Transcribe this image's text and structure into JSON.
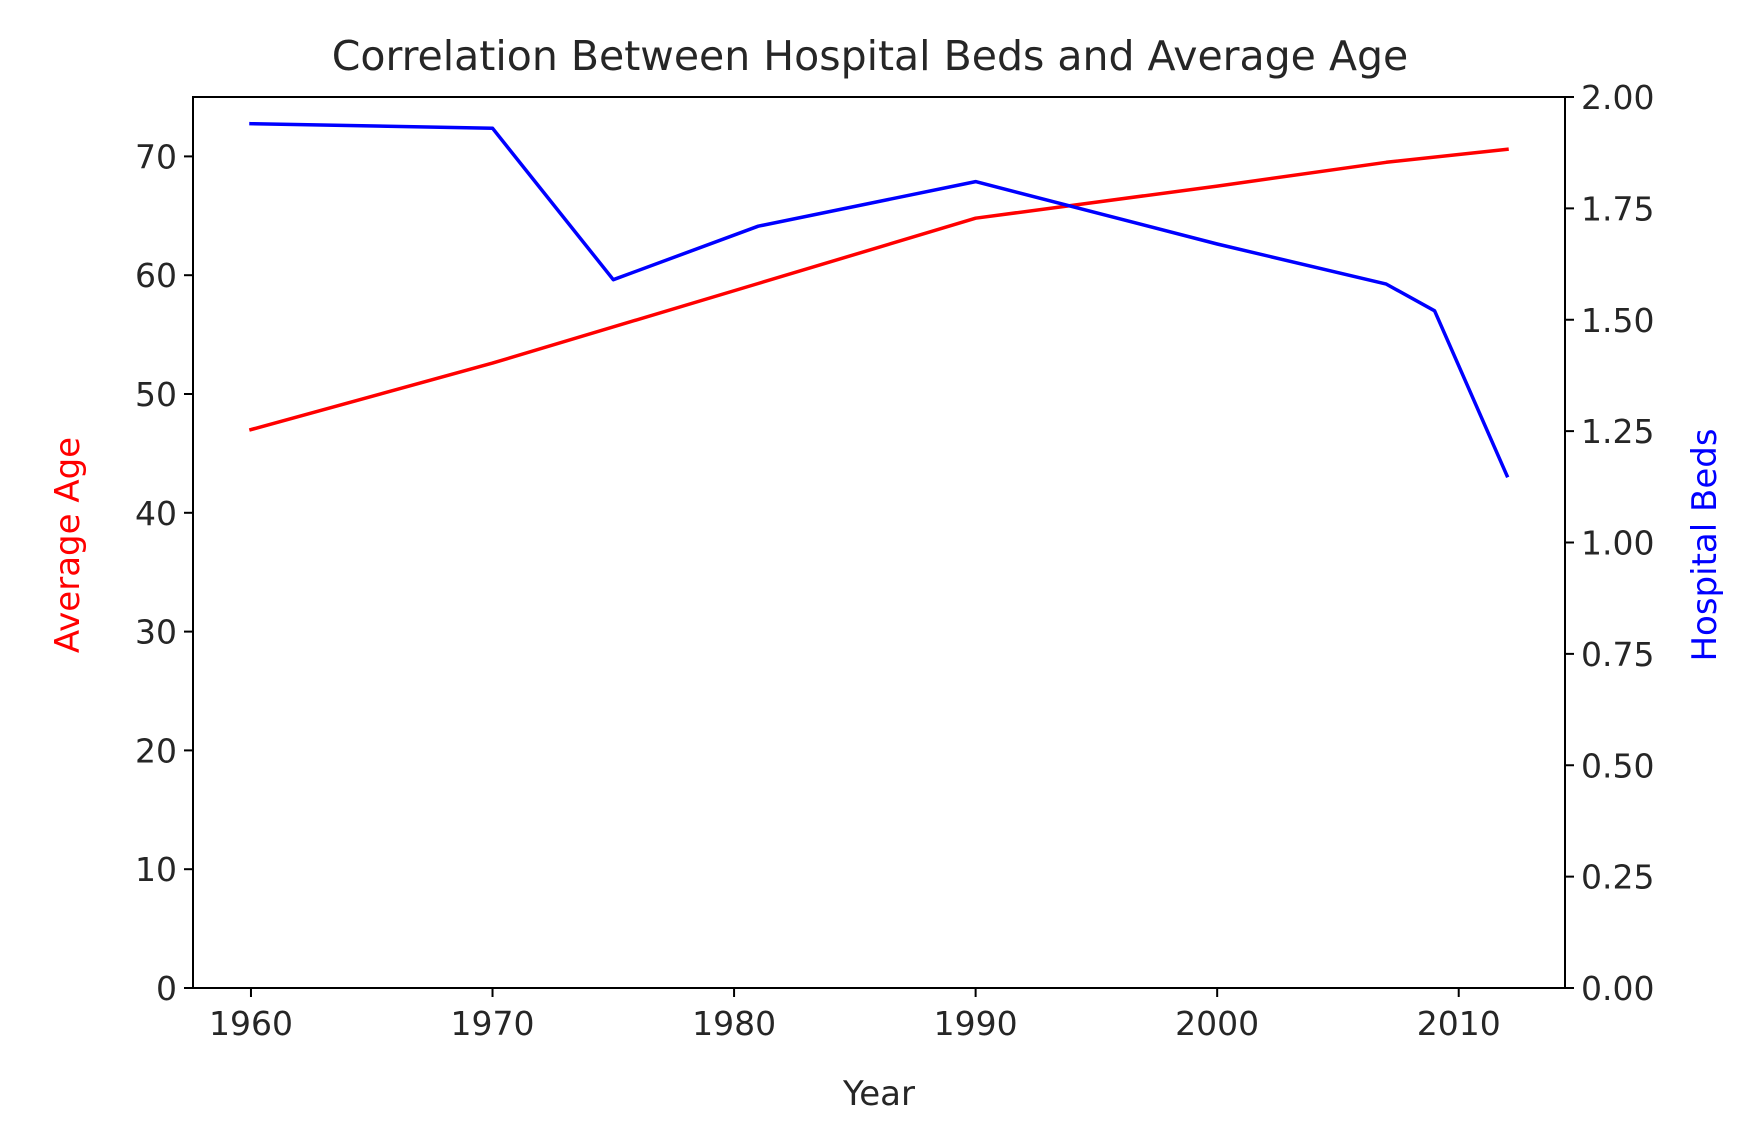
{
  "chart_data": {
    "type": "line",
    "title": "Correlation Between Hospital Beds and Average Age",
    "xlabel": "Year",
    "x": [
      1960,
      1970,
      1975,
      1981,
      1990,
      2000,
      2007,
      2009,
      2012
    ],
    "xlim": [
      1957.6,
      2014.4
    ],
    "x_ticks": [
      1960,
      1970,
      1980,
      1990,
      2000,
      2010
    ],
    "grid": false,
    "axes": {
      "left": {
        "label": "Average Age",
        "label_color": "#ff0000",
        "ylim": [
          0,
          75
        ],
        "ticks": [
          0,
          10,
          20,
          30,
          40,
          50,
          60,
          70
        ],
        "tick_labels": [
          "0",
          "10",
          "20",
          "30",
          "40",
          "50",
          "60",
          "70"
        ]
      },
      "right": {
        "label": "Hospital Beds",
        "label_color": "#0000ff",
        "ylim": [
          0,
          2.0
        ],
        "ticks": [
          0,
          0.25,
          0.5,
          0.75,
          1.0,
          1.25,
          1.5,
          1.75,
          2.0
        ],
        "tick_labels": [
          "0.00",
          "0.25",
          "0.50",
          "0.75",
          "1.00",
          "1.25",
          "1.50",
          "1.75",
          "2.00"
        ]
      }
    },
    "series": [
      {
        "axis": "left",
        "color": "#ff0000",
        "x": [
          1960,
          1970,
          1981,
          1990,
          2000,
          2007,
          2012
        ],
        "values": [
          47.0,
          52.6,
          59.3,
          64.8,
          67.5,
          69.5,
          70.6
        ]
      },
      {
        "axis": "right",
        "color": "#0000ff",
        "x": [
          1960,
          1970,
          1975,
          1981,
          1990,
          2000,
          2007,
          2009,
          2012
        ],
        "values": [
          1.94,
          1.93,
          1.59,
          1.71,
          1.81,
          1.67,
          1.58,
          1.52,
          1.15
        ]
      }
    ]
  }
}
